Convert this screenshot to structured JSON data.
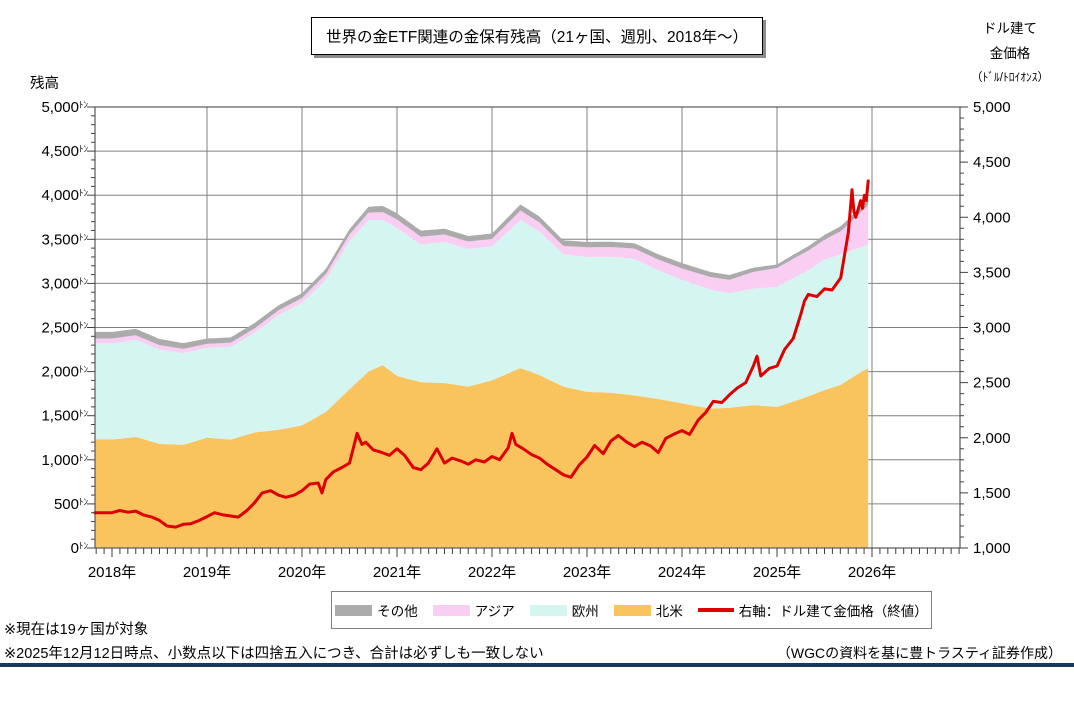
{
  "header": {
    "title": "世界の金ETF関連の金保有残高（21ヶ国、週別、2018年～）"
  },
  "footnotes": {
    "note1": "※現在は19ヶ国が対象",
    "note2": "※2025年12月12日時点、小数点以下は四捨五入につき、合計は必ずしも一致しない",
    "source": "（WGCの資料を基に豊トラスティ証券作成）"
  },
  "colors": {
    "north_america": "#F9C45E",
    "europe": "#D5F5F1",
    "asia": "#FACDF2",
    "other": "#ABABAB",
    "gold_price_line": "#DD0000",
    "gridline": "#808080",
    "plot_border": "#595959",
    "bottom_rule": "#17375D"
  },
  "chart_data": {
    "type": "area",
    "subtype": "stacked-area-with-right-axis-line",
    "title": "世界の金ETF関連の金保有残高（21ヶ国、週別、2018年～）",
    "left_axis": {
      "title": "残高",
      "unit": "ﾄﾝ",
      "min": 0,
      "max": 5000,
      "step": 500,
      "minor_step": 100
    },
    "right_axis": {
      "title_lines": [
        "ドル建て",
        "金価格",
        "（ﾄﾞﾙ/ﾄﾛｲｵﾝｽ）"
      ],
      "min": 1000,
      "max": 5000,
      "step": 500,
      "minor_step": 100
    },
    "x_axis": {
      "start_year": 2018,
      "end_year": 2026,
      "label_suffix": "年",
      "data_start": 2018.0,
      "data_end": 2025.96,
      "minor_tick": "monthly"
    },
    "legend": [
      {
        "key": "other",
        "label": "その他",
        "type": "area",
        "color": "#ABABAB"
      },
      {
        "key": "asia",
        "label": "アジア",
        "type": "area",
        "color": "#FACDF2"
      },
      {
        "key": "europe",
        "label": "欧州",
        "type": "area",
        "color": "#D5F5F1"
      },
      {
        "key": "north-america",
        "label": "北米",
        "type": "area",
        "color": "#F9C45E"
      },
      {
        "key": "gold-price",
        "label": "右軸：ドル建て金価格（終値）",
        "type": "line",
        "color": "#DD0000"
      }
    ],
    "stack_series": [
      {
        "key": "north-america",
        "name": "北米",
        "color": "#F9C45E",
        "unit": "tons",
        "points": [
          [
            2018,
            1230
          ],
          [
            2018.25,
            1260
          ],
          [
            2018.5,
            1180
          ],
          [
            2018.75,
            1170
          ],
          [
            2019,
            1250
          ],
          [
            2019.25,
            1230
          ],
          [
            2019.5,
            1310
          ],
          [
            2019.75,
            1340
          ],
          [
            2020,
            1390
          ],
          [
            2020.25,
            1540
          ],
          [
            2020.5,
            1800
          ],
          [
            2020.7,
            2000
          ],
          [
            2020.85,
            2075
          ],
          [
            2021,
            1950
          ],
          [
            2021.25,
            1880
          ],
          [
            2021.5,
            1870
          ],
          [
            2021.75,
            1830
          ],
          [
            2022,
            1900
          ],
          [
            2022.3,
            2040
          ],
          [
            2022.5,
            1960
          ],
          [
            2022.75,
            1830
          ],
          [
            2023,
            1770
          ],
          [
            2023.25,
            1760
          ],
          [
            2023.5,
            1730
          ],
          [
            2023.75,
            1690
          ],
          [
            2024,
            1640
          ],
          [
            2024.3,
            1580
          ],
          [
            2024.5,
            1590
          ],
          [
            2024.75,
            1620
          ],
          [
            2025,
            1600
          ],
          [
            2025.17,
            1660
          ],
          [
            2025.33,
            1720
          ],
          [
            2025.5,
            1790
          ],
          [
            2025.67,
            1850
          ],
          [
            2025.83,
            1960
          ],
          [
            2025.96,
            2040
          ]
        ]
      },
      {
        "key": "europe",
        "name": "欧州",
        "color": "#D5F5F1",
        "unit": "tons",
        "points": [
          [
            2018,
            1090
          ],
          [
            2018.25,
            1100
          ],
          [
            2018.5,
            1070
          ],
          [
            2018.75,
            1040
          ],
          [
            2019,
            1020
          ],
          [
            2019.25,
            1050
          ],
          [
            2019.5,
            1130
          ],
          [
            2019.75,
            1300
          ],
          [
            2020,
            1390
          ],
          [
            2020.25,
            1500
          ],
          [
            2020.5,
            1680
          ],
          [
            2020.7,
            1720
          ],
          [
            2020.85,
            1645
          ],
          [
            2021,
            1680
          ],
          [
            2021.25,
            1560
          ],
          [
            2021.5,
            1600
          ],
          [
            2021.75,
            1560
          ],
          [
            2022,
            1520
          ],
          [
            2022.3,
            1680
          ],
          [
            2022.5,
            1630
          ],
          [
            2022.75,
            1500
          ],
          [
            2023,
            1530
          ],
          [
            2023.25,
            1540
          ],
          [
            2023.5,
            1550
          ],
          [
            2023.75,
            1460
          ],
          [
            2024,
            1400
          ],
          [
            2024.3,
            1350
          ],
          [
            2024.5,
            1300
          ],
          [
            2024.75,
            1320
          ],
          [
            2025,
            1360
          ],
          [
            2025.17,
            1400
          ],
          [
            2025.33,
            1430
          ],
          [
            2025.5,
            1480
          ],
          [
            2025.67,
            1480
          ],
          [
            2025.83,
            1430
          ],
          [
            2025.96,
            1400
          ]
        ]
      },
      {
        "key": "asia",
        "name": "アジア",
        "color": "#FACDF2",
        "unit": "tons",
        "points": [
          [
            2018,
            55
          ],
          [
            2018.5,
            50
          ],
          [
            2019,
            45
          ],
          [
            2019.5,
            50
          ],
          [
            2020,
            55
          ],
          [
            2020.5,
            75
          ],
          [
            2021,
            95
          ],
          [
            2021.5,
            85
          ],
          [
            2022,
            85
          ],
          [
            2022.3,
            105
          ],
          [
            2022.75,
            95
          ],
          [
            2023,
            110
          ],
          [
            2023.5,
            115
          ],
          [
            2023.75,
            120
          ],
          [
            2024,
            130
          ],
          [
            2024.5,
            150
          ],
          [
            2024.75,
            190
          ],
          [
            2025,
            215
          ],
          [
            2025.25,
            220
          ],
          [
            2025.5,
            225
          ],
          [
            2025.67,
            260
          ],
          [
            2025.83,
            360
          ],
          [
            2025.96,
            450
          ]
        ]
      },
      {
        "key": "other",
        "name": "その他",
        "color": "#ABABAB",
        "unit": "tons",
        "points": [
          [
            2018,
            75
          ],
          [
            2018.5,
            70
          ],
          [
            2019,
            60
          ],
          [
            2019.5,
            60
          ],
          [
            2020,
            55
          ],
          [
            2020.5,
            60
          ],
          [
            2020.85,
            70
          ],
          [
            2021,
            70
          ],
          [
            2021.5,
            65
          ],
          [
            2022,
            60
          ],
          [
            2022.3,
            70
          ],
          [
            2023,
            60
          ],
          [
            2023.5,
            60
          ],
          [
            2024,
            60
          ],
          [
            2024.5,
            55
          ],
          [
            2025,
            40
          ],
          [
            2025.5,
            55
          ],
          [
            2025.83,
            60
          ],
          [
            2025.96,
            60
          ]
        ]
      }
    ],
    "line_series": {
      "key": "gold-price",
      "name": "右軸：ドル建て金価格（終値）",
      "axis": "right",
      "color": "#DD0000",
      "unit": "USD/troy oz",
      "points": [
        [
          2018,
          1320
        ],
        [
          2018.08,
          1340
        ],
        [
          2018.17,
          1325
        ],
        [
          2018.25,
          1335
        ],
        [
          2018.33,
          1300
        ],
        [
          2018.42,
          1280
        ],
        [
          2018.5,
          1250
        ],
        [
          2018.58,
          1200
        ],
        [
          2018.67,
          1190
        ],
        [
          2018.75,
          1215
        ],
        [
          2018.83,
          1220
        ],
        [
          2018.92,
          1250
        ],
        [
          2019,
          1285
        ],
        [
          2019.08,
          1320
        ],
        [
          2019.17,
          1300
        ],
        [
          2019.25,
          1290
        ],
        [
          2019.33,
          1280
        ],
        [
          2019.42,
          1340
        ],
        [
          2019.5,
          1410
        ],
        [
          2019.58,
          1500
        ],
        [
          2019.67,
          1520
        ],
        [
          2019.75,
          1480
        ],
        [
          2019.83,
          1460
        ],
        [
          2019.92,
          1480
        ],
        [
          2020,
          1520
        ],
        [
          2020.08,
          1580
        ],
        [
          2020.17,
          1590
        ],
        [
          2020.21,
          1500
        ],
        [
          2020.25,
          1620
        ],
        [
          2020.33,
          1690
        ],
        [
          2020.42,
          1730
        ],
        [
          2020.5,
          1770
        ],
        [
          2020.58,
          2040
        ],
        [
          2020.63,
          1940
        ],
        [
          2020.67,
          1960
        ],
        [
          2020.75,
          1890
        ],
        [
          2020.83,
          1870
        ],
        [
          2020.92,
          1840
        ],
        [
          2021,
          1900
        ],
        [
          2021.08,
          1840
        ],
        [
          2021.17,
          1730
        ],
        [
          2021.25,
          1710
        ],
        [
          2021.33,
          1770
        ],
        [
          2021.42,
          1900
        ],
        [
          2021.5,
          1770
        ],
        [
          2021.58,
          1815
        ],
        [
          2021.67,
          1790
        ],
        [
          2021.75,
          1760
        ],
        [
          2021.83,
          1800
        ],
        [
          2021.92,
          1780
        ],
        [
          2022,
          1830
        ],
        [
          2022.08,
          1800
        ],
        [
          2022.17,
          1910
        ],
        [
          2022.21,
          2040
        ],
        [
          2022.25,
          1940
        ],
        [
          2022.33,
          1900
        ],
        [
          2022.42,
          1845
        ],
        [
          2022.5,
          1815
        ],
        [
          2022.58,
          1760
        ],
        [
          2022.67,
          1710
        ],
        [
          2022.75,
          1665
        ],
        [
          2022.83,
          1640
        ],
        [
          2022.92,
          1755
        ],
        [
          2023,
          1825
        ],
        [
          2023.08,
          1930
        ],
        [
          2023.17,
          1855
        ],
        [
          2023.25,
          1970
        ],
        [
          2023.33,
          2020
        ],
        [
          2023.42,
          1960
        ],
        [
          2023.5,
          1920
        ],
        [
          2023.58,
          1960
        ],
        [
          2023.67,
          1925
        ],
        [
          2023.75,
          1865
        ],
        [
          2023.83,
          1995
        ],
        [
          2023.92,
          2035
        ],
        [
          2024,
          2065
        ],
        [
          2024.08,
          2030
        ],
        [
          2024.17,
          2160
        ],
        [
          2024.25,
          2230
        ],
        [
          2024.33,
          2330
        ],
        [
          2024.42,
          2320
        ],
        [
          2024.5,
          2390
        ],
        [
          2024.58,
          2450
        ],
        [
          2024.67,
          2500
        ],
        [
          2024.75,
          2650
        ],
        [
          2024.79,
          2740
        ],
        [
          2024.83,
          2560
        ],
        [
          2024.92,
          2630
        ],
        [
          2025,
          2650
        ],
        [
          2025.08,
          2800
        ],
        [
          2025.17,
          2900
        ],
        [
          2025.25,
          3120
        ],
        [
          2025.29,
          3240
        ],
        [
          2025.33,
          3300
        ],
        [
          2025.42,
          3280
        ],
        [
          2025.5,
          3350
        ],
        [
          2025.58,
          3340
        ],
        [
          2025.67,
          3450
        ],
        [
          2025.75,
          3860
        ],
        [
          2025.79,
          4250
        ],
        [
          2025.81,
          4050
        ],
        [
          2025.83,
          4000
        ],
        [
          2025.88,
          4150
        ],
        [
          2025.9,
          4080
        ],
        [
          2025.92,
          4200
        ],
        [
          2025.94,
          4150
        ],
        [
          2025.96,
          4330
        ]
      ]
    },
    "grid": "on",
    "legend_position": "bottom"
  }
}
